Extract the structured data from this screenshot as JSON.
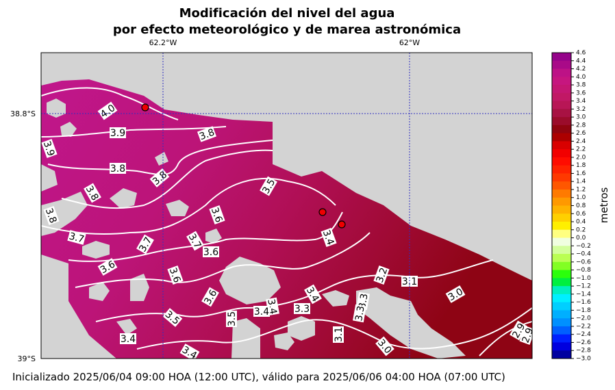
{
  "map": {
    "title": [
      "Modificación del nivel del agua",
      "por efecto meteorológico y de marea astronómica"
    ],
    "lon_ticks": [
      "62.2°W",
      "62°W"
    ],
    "lat_ticks": [
      "38.8°S",
      "39°S"
    ],
    "colorbar": {
      "label": "metros",
      "ticks": [
        4.6,
        4.4,
        4.2,
        {
          "value": 4,
          "label": "4.0"
        },
        3.8,
        3.6,
        3.4,
        3.2,
        {
          "value": 3,
          "label": "3.0"
        },
        2.8,
        2.6,
        2.4,
        2.2,
        {
          "value": 2,
          "label": "2.0"
        },
        1.8,
        1.6,
        1.4,
        1.2,
        {
          "value": 1,
          "label": "1.0"
        },
        0.8,
        0.6,
        0.4,
        0.2,
        {
          "value": 0,
          "label": "0.0"
        },
        {
          "value": -0.2,
          "label": "−0.2"
        },
        {
          "value": -0.4,
          "label": "−0.4"
        },
        {
          "value": -0.6,
          "label": "−0.6"
        },
        {
          "value": -0.8,
          "label": "−0.8"
        },
        {
          "value": -1,
          "label": "−1.0"
        },
        {
          "value": -1.2,
          "label": "−1.2"
        },
        {
          "value": -1.4,
          "label": "−1.4"
        },
        {
          "value": -1.6,
          "label": "−1.6"
        },
        {
          "value": -1.8,
          "label": "−1.8"
        },
        {
          "value": -2,
          "label": "−2.0"
        },
        {
          "value": -2.2,
          "label": "−2.2"
        },
        {
          "value": -2.4,
          "label": "−2.4"
        },
        {
          "value": -2.6,
          "label": "−2.6"
        },
        {
          "value": -2.8,
          "label": "−2.8"
        },
        {
          "value": -3,
          "label": "−3.0"
        }
      ]
    },
    "contour_labels": [
      "4.0",
      "3.9",
      "3.9",
      "3.8",
      "3.8",
      "3.8",
      "3.8",
      "3.8",
      "3.5",
      "3.6",
      "3.7",
      "3.7",
      "3.7",
      "3.6",
      "3.6",
      "3.6",
      "3.6",
      "3.4",
      "3.2",
      "3.1",
      "3.0",
      "3.4",
      "3.3",
      "3.4",
      "3.4",
      "3.3",
      "3.5",
      "3.5",
      "3.4",
      "3.4",
      "3.1",
      "3.0",
      "2.9",
      "2.9",
      "3.3"
    ],
    "footer": "Inicializado 2025/06/04 09:00 HOA (12:00 UTC), válido para 2025/06/06 04:00 HOA (07:00 UTC)"
  }
}
